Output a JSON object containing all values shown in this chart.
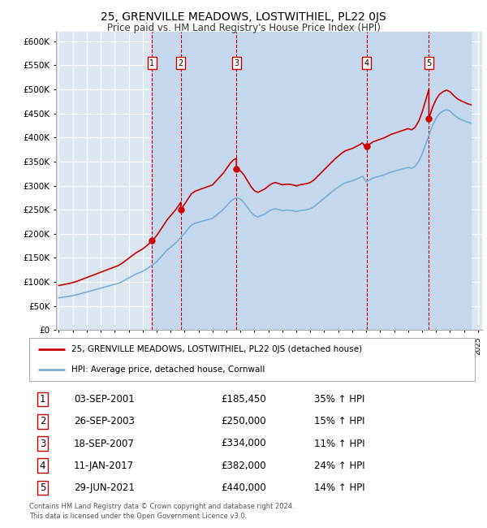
{
  "title": "25, GRENVILLE MEADOWS, LOSTWITHIEL, PL22 0JS",
  "subtitle": "Price paid vs. HM Land Registry's House Price Index (HPI)",
  "ylabel_ticks": [
    "£0",
    "£50K",
    "£100K",
    "£150K",
    "£200K",
    "£250K",
    "£300K",
    "£350K",
    "£400K",
    "£450K",
    "£500K",
    "£550K",
    "£600K"
  ],
  "ylim": [
    0,
    620000
  ],
  "xlim_start": 1994.8,
  "xlim_end": 2025.3,
  "background_color": "#dce6f1",
  "plot_bg_color": "#dce6f1",
  "grid_color": "#ffffff",
  "sale_dates": [
    2001.67,
    2003.73,
    2007.71,
    2017.03,
    2021.49
  ],
  "sale_prices": [
    185450,
    250000,
    334000,
    382000,
    440000
  ],
  "sale_labels": [
    "1",
    "2",
    "3",
    "4",
    "5"
  ],
  "sale_date_strs": [
    "03-SEP-2001",
    "26-SEP-2003",
    "18-SEP-2007",
    "11-JAN-2017",
    "29-JUN-2021"
  ],
  "sale_price_strs": [
    "£185,450",
    "£250,000",
    "£334,000",
    "£382,000",
    "£440,000"
  ],
  "sale_pct_strs": [
    "35% ↑ HPI",
    "15% ↑ HPI",
    "11% ↑ HPI",
    "24% ↑ HPI",
    "14% ↑ HPI"
  ],
  "hpi_line_color": "#7bafd4",
  "price_line_color": "#cc0000",
  "vline_color": "#cc0000",
  "legend_label_red": "25, GRENVILLE MEADOWS, LOSTWITHIEL, PL22 0JS (detached house)",
  "legend_label_blue": "HPI: Average price, detached house, Cornwall",
  "footer_line1": "Contains HM Land Registry data © Crown copyright and database right 2024.",
  "footer_line2": "This data is licensed under the Open Government Licence v3.0.",
  "hpi_x": [
    1995.0,
    1995.25,
    1995.5,
    1995.75,
    1996.0,
    1996.25,
    1996.5,
    1996.75,
    1997.0,
    1997.25,
    1997.5,
    1997.75,
    1998.0,
    1998.25,
    1998.5,
    1998.75,
    1999.0,
    1999.25,
    1999.5,
    1999.75,
    2000.0,
    2000.25,
    2000.5,
    2000.75,
    2001.0,
    2001.25,
    2001.5,
    2001.75,
    2002.0,
    2002.25,
    2002.5,
    2002.75,
    2003.0,
    2003.25,
    2003.5,
    2003.75,
    2004.0,
    2004.25,
    2004.5,
    2004.75,
    2005.0,
    2005.25,
    2005.5,
    2005.75,
    2006.0,
    2006.25,
    2006.5,
    2006.75,
    2007.0,
    2007.25,
    2007.5,
    2007.75,
    2008.0,
    2008.25,
    2008.5,
    2008.75,
    2009.0,
    2009.25,
    2009.5,
    2009.75,
    2010.0,
    2010.25,
    2010.5,
    2010.75,
    2011.0,
    2011.25,
    2011.5,
    2011.75,
    2012.0,
    2012.25,
    2012.5,
    2012.75,
    2013.0,
    2013.25,
    2013.5,
    2013.75,
    2014.0,
    2014.25,
    2014.5,
    2014.75,
    2015.0,
    2015.25,
    2015.5,
    2015.75,
    2016.0,
    2016.25,
    2016.5,
    2016.75,
    2017.0,
    2017.25,
    2017.5,
    2017.75,
    2018.0,
    2018.25,
    2018.5,
    2018.75,
    2019.0,
    2019.25,
    2019.5,
    2019.75,
    2020.0,
    2020.25,
    2020.5,
    2020.75,
    2021.0,
    2021.25,
    2021.5,
    2021.75,
    2022.0,
    2022.25,
    2022.5,
    2022.75,
    2023.0,
    2023.25,
    2023.5,
    2023.75,
    2024.0,
    2024.25,
    2024.5
  ],
  "hpi_y": [
    67000,
    68000,
    69000,
    70000,
    71500,
    73000,
    75000,
    77000,
    79000,
    81000,
    83000,
    85000,
    87000,
    89000,
    91000,
    93000,
    95000,
    97000,
    100000,
    104000,
    108000,
    112000,
    116000,
    119000,
    122000,
    126000,
    131000,
    136000,
    142000,
    150000,
    158000,
    166000,
    172000,
    178000,
    185000,
    193000,
    201000,
    210000,
    218000,
    222000,
    224000,
    226000,
    228000,
    230000,
    232000,
    238000,
    244000,
    250000,
    258000,
    266000,
    272000,
    275000,
    272000,
    265000,
    255000,
    245000,
    238000,
    235000,
    238000,
    241000,
    246000,
    250000,
    252000,
    250000,
    248000,
    249000,
    249000,
    248000,
    246000,
    248000,
    249000,
    250000,
    252000,
    256000,
    262000,
    268000,
    274000,
    280000,
    286000,
    292000,
    297000,
    302000,
    306000,
    308000,
    310000,
    313000,
    316000,
    320000,
    308000,
    312000,
    316000,
    318000,
    320000,
    322000,
    325000,
    328000,
    330000,
    332000,
    334000,
    336000,
    338000,
    336000,
    340000,
    350000,
    365000,
    385000,
    405000,
    425000,
    440000,
    450000,
    455000,
    458000,
    455000,
    448000,
    442000,
    438000,
    435000,
    432000,
    430000
  ],
  "shade_regions": [
    [
      2001.67,
      2003.73
    ],
    [
      2003.73,
      2007.71
    ],
    [
      2007.71,
      2017.03
    ],
    [
      2017.03,
      2021.49
    ],
    [
      2021.49,
      2024.5
    ]
  ]
}
